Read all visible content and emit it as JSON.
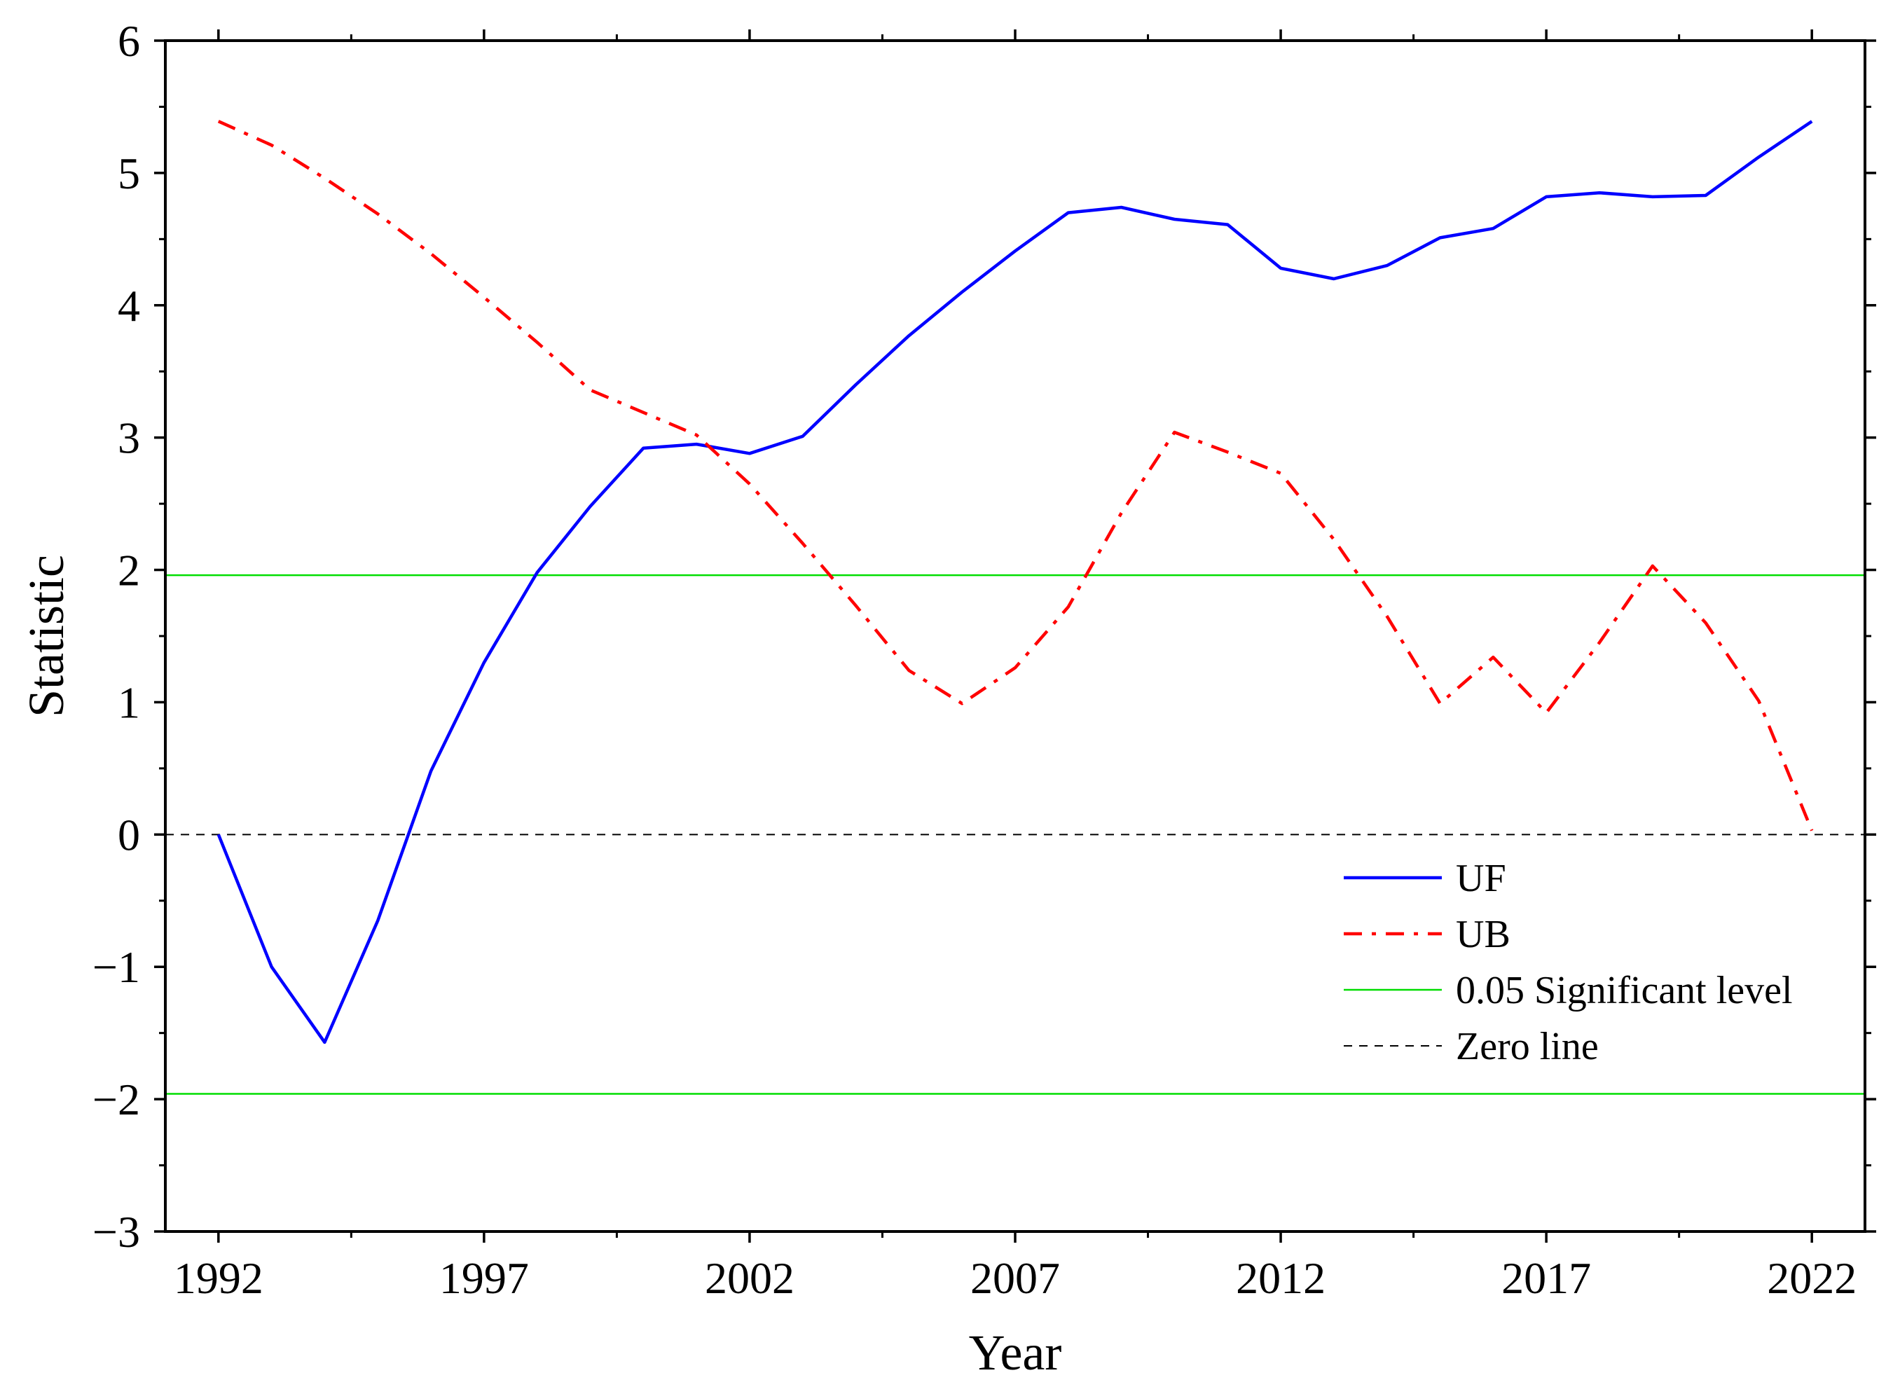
{
  "chart_data": {
    "type": "line",
    "title": "",
    "xlabel": "Year",
    "ylabel": "Statistic",
    "xlim": [
      1991,
      2023
    ],
    "ylim": [
      -3,
      6
    ],
    "x_ticks": [
      1992,
      1997,
      2002,
      2007,
      2012,
      2017,
      2022
    ],
    "y_ticks": [
      -3,
      -2,
      -1,
      0,
      1,
      2,
      3,
      4,
      5,
      6
    ],
    "y_tick_labels": [
      "−3",
      "−2",
      "−1",
      "0",
      "1",
      "2",
      "3",
      "4",
      "5",
      "6"
    ],
    "x": [
      1992,
      1993,
      1994,
      1995,
      1996,
      1997,
      1998,
      1999,
      2000,
      2001,
      2002,
      2003,
      2004,
      2005,
      2006,
      2007,
      2008,
      2009,
      2010,
      2011,
      2012,
      2013,
      2014,
      2015,
      2016,
      2017,
      2018,
      2019,
      2020,
      2021,
      2022
    ],
    "series": [
      {
        "name": "UF",
        "color": "#0000ff",
        "style": "solid",
        "values": [
          0,
          -1.0,
          -1.57,
          -0.65,
          0.48,
          1.3,
          1.98,
          2.48,
          2.92,
          2.95,
          2.88,
          3.01,
          3.4,
          3.77,
          4.1,
          4.41,
          4.7,
          4.74,
          4.65,
          4.61,
          4.28,
          4.2,
          4.3,
          4.51,
          4.58,
          4.82,
          4.85,
          4.82,
          4.83,
          5.12,
          5.39
        ]
      },
      {
        "name": "UB",
        "color": "#ff0000",
        "style": "dashdot",
        "values": [
          5.39,
          5.21,
          4.96,
          4.69,
          4.39,
          4.06,
          3.72,
          3.36,
          3.19,
          3.02,
          2.65,
          2.2,
          1.73,
          1.24,
          0.99,
          1.26,
          1.72,
          2.43,
          3.04,
          2.89,
          2.73,
          2.23,
          1.65,
          0.99,
          1.34,
          0.92,
          1.45,
          2.03,
          1.6,
          1.01,
          0.03
        ]
      }
    ],
    "reference_lines": [
      {
        "name": "0.05 Significant level",
        "color": "#00dd00",
        "style": "solid",
        "values": [
          1.96,
          -1.96
        ]
      },
      {
        "name": "Zero line",
        "color": "#000000",
        "style": "dashed",
        "values": [
          0
        ]
      }
    ],
    "legend": {
      "position": "lower-right",
      "entries": [
        {
          "label": "UF",
          "color": "#0000ff",
          "style": "solid"
        },
        {
          "label": "UB",
          "color": "#ff0000",
          "style": "dashdot"
        },
        {
          "label": "0.05 Significant level",
          "color": "#00dd00",
          "style": "solid"
        },
        {
          "label": "Zero line",
          "color": "#000000",
          "style": "dashed"
        }
      ]
    }
  }
}
